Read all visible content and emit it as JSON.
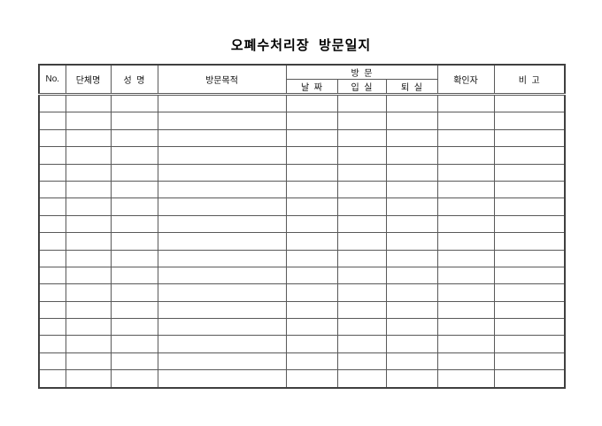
{
  "page": {
    "title": "오폐수처리장  방문일지"
  },
  "table": {
    "headers": {
      "no": "No.",
      "organization": "단체명",
      "name": "성  명",
      "purpose": "방문목적",
      "visit_group": "방  문",
      "date": "날  짜",
      "time_in": "입  실",
      "time_out": "퇴  실",
      "verifier": "확인자",
      "remarks": "비  고"
    },
    "row_count": 17,
    "column_count": 9,
    "body_rows_all_empty": true
  },
  "colors": {
    "background": "#ffffff",
    "text": "#111111",
    "title_text": "#000000",
    "grid_line": "#595959",
    "outer_border": "#404040"
  }
}
